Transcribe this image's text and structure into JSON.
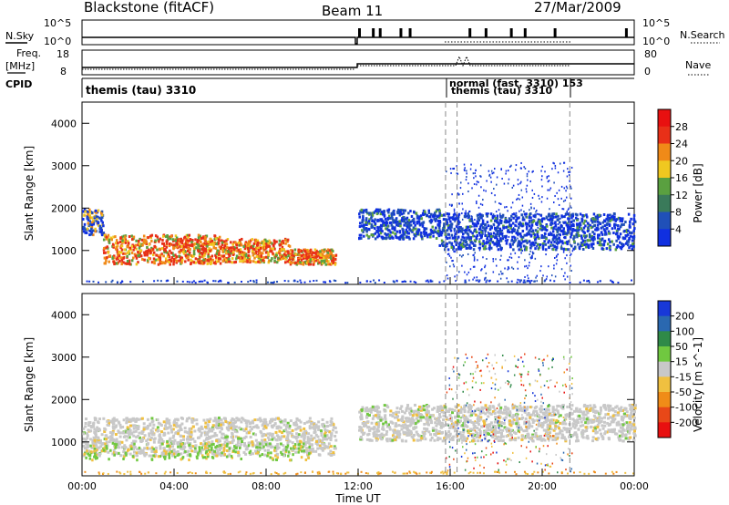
{
  "header": {
    "title": "Blackstone (fitACF)",
    "beam": "Beam 11",
    "date": "27/Mar/2009"
  },
  "strips": {
    "nsky_label": "N.Sky",
    "nsearch_label": "N.Search",
    "nsky_ticks": [
      "10^5",
      "10^0"
    ],
    "nsearch_ticks": [
      "10^5",
      "10^0"
    ],
    "freq_label": "Freq.",
    "freq_unit": "[MHz]",
    "freq_ticks": [
      "18",
      "8"
    ],
    "nave_label": "Nave",
    "nave_ticks": [
      "80",
      "0"
    ],
    "cpid_label": "CPID",
    "cpid_text1": "themis (tau) 3310",
    "cpid_text2": "normal (fast, 3310) 153",
    "cpid_text3": "themis (tau) 3310"
  },
  "time_axis": {
    "label": "Time UT",
    "ticks": [
      "00:00",
      "04:00",
      "08:00",
      "12:00",
      "16:00",
      "20:00",
      "00:00"
    ]
  },
  "panels": [
    {
      "ylabel": "Slant Range [km]",
      "yticks": [
        "1000",
        "2000",
        "3000",
        "4000"
      ],
      "cbar_label": "Power [dB]",
      "cbar_ticks": [
        "4",
        "8",
        "12",
        "16",
        "20",
        "24",
        "28"
      ],
      "cbar_colors": [
        "#1030e0",
        "#2050b8",
        "#3a7a5a",
        "#5aa040",
        "#f0c820",
        "#f08a18",
        "#e83018",
        "#e81010"
      ]
    },
    {
      "ylabel": "Slant Range [km]",
      "yticks": [
        "1000",
        "2000",
        "3000",
        "4000"
      ],
      "cbar_label": "Velocity [m s^-1]",
      "cbar_ticks": [
        "200",
        "100",
        "50",
        "15",
        "-15",
        "-50",
        "-100",
        "-200"
      ],
      "cbar_colors": [
        "#1838d8",
        "#2a68b0",
        "#2f8a48",
        "#70c840",
        "#c8c8c8",
        "#f0c040",
        "#f08c18",
        "#e84818",
        "#e81010"
      ]
    }
  ],
  "chart_data": {
    "type": "heatmap",
    "x_unit": "hours UT",
    "xlim": [
      0,
      24
    ],
    "ylim": [
      200,
      4500
    ],
    "dashed_time_markers": [
      15.8,
      16.3,
      21.2
    ],
    "nsky_spikes": [
      12.0,
      12.6,
      12.9,
      13.8,
      14.2,
      16.8,
      17.5,
      18.6,
      19.2,
      20.5,
      23.6
    ],
    "power_regions": [
      {
        "t0": 0.0,
        "t1": 0.9,
        "r_lo": 1400,
        "r_hi": 2000,
        "level": "medium"
      },
      {
        "t0": 0.9,
        "t1": 6.0,
        "r_lo": 700,
        "r_hi": 1400,
        "level": "high"
      },
      {
        "t0": 6.0,
        "t1": 9.0,
        "r_lo": 750,
        "r_hi": 1300,
        "level": "high"
      },
      {
        "t0": 9.0,
        "t1": 11.0,
        "r_lo": 700,
        "r_hi": 1050,
        "level": "high"
      },
      {
        "t0": 12.0,
        "t1": 15.5,
        "r_lo": 1300,
        "r_hi": 2000,
        "level": "low"
      },
      {
        "t0": 15.5,
        "t1": 24.0,
        "r_lo": 1050,
        "r_hi": 1900,
        "level": "low"
      }
    ],
    "velocity_regions": [
      {
        "t0": 0.0,
        "t1": 11.0,
        "r_lo": 700,
        "r_hi": 1600,
        "class": "near zero (-15 to 15)"
      },
      {
        "t0": 12.0,
        "t1": 24.0,
        "r_lo": 1050,
        "r_hi": 1900,
        "class": "near zero (-15 to 15)"
      }
    ]
  }
}
